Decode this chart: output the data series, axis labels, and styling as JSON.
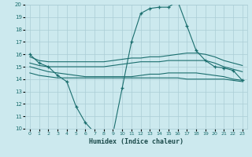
{
  "xlabel": "Humidex (Indice chaleur)",
  "bg_color": "#cce9ee",
  "grid_color": "#aacdd5",
  "line_color": "#1a6e6e",
  "xlim": [
    -0.5,
    23.5
  ],
  "ylim": [
    10,
    20
  ],
  "xticks": [
    0,
    1,
    2,
    3,
    4,
    5,
    6,
    7,
    8,
    9,
    10,
    11,
    12,
    13,
    14,
    15,
    16,
    17,
    18,
    19,
    20,
    21,
    22,
    23
  ],
  "yticks": [
    10,
    11,
    12,
    13,
    14,
    15,
    16,
    17,
    18,
    19,
    20
  ],
  "series": [
    {
      "x": [
        0,
        1,
        2,
        3,
        4,
        5,
        6,
        7,
        8,
        9,
        10,
        11,
        12,
        13,
        14,
        15,
        16,
        17,
        18,
        19,
        20,
        21,
        22,
        23
      ],
      "y": [
        16.0,
        15.3,
        15.0,
        14.3,
        13.8,
        11.8,
        10.5,
        9.7,
        9.5,
        9.6,
        13.3,
        17.0,
        19.3,
        19.7,
        19.8,
        19.8,
        20.3,
        18.3,
        16.3,
        15.5,
        15.0,
        14.9,
        14.7,
        13.9
      ],
      "marker": "+"
    },
    {
      "x": [
        0,
        1,
        2,
        3,
        4,
        5,
        6,
        7,
        8,
        9,
        10,
        11,
        12,
        13,
        14,
        15,
        16,
        17,
        18,
        19,
        20,
        21,
        22,
        23
      ],
      "y": [
        15.8,
        15.5,
        15.4,
        15.4,
        15.4,
        15.4,
        15.4,
        15.4,
        15.4,
        15.5,
        15.6,
        15.7,
        15.7,
        15.8,
        15.8,
        15.9,
        16.0,
        16.1,
        16.1,
        16.0,
        15.8,
        15.5,
        15.3,
        15.1
      ],
      "marker": null
    },
    {
      "x": [
        0,
        1,
        2,
        3,
        4,
        5,
        6,
        7,
        8,
        9,
        10,
        11,
        12,
        13,
        14,
        15,
        16,
        17,
        18,
        19,
        20,
        21,
        22,
        23
      ],
      "y": [
        15.3,
        15.1,
        15.0,
        15.0,
        15.0,
        15.0,
        15.0,
        15.0,
        15.0,
        15.1,
        15.2,
        15.3,
        15.4,
        15.4,
        15.4,
        15.5,
        15.5,
        15.5,
        15.5,
        15.5,
        15.3,
        15.0,
        14.8,
        14.6
      ],
      "marker": null
    },
    {
      "x": [
        0,
        1,
        2,
        3,
        4,
        5,
        6,
        7,
        8,
        9,
        10,
        11,
        12,
        13,
        14,
        15,
        16,
        17,
        18,
        19,
        20,
        21,
        22,
        23
      ],
      "y": [
        15.0,
        14.8,
        14.6,
        14.5,
        14.4,
        14.3,
        14.2,
        14.2,
        14.2,
        14.2,
        14.2,
        14.2,
        14.3,
        14.4,
        14.4,
        14.5,
        14.5,
        14.5,
        14.5,
        14.4,
        14.3,
        14.2,
        14.0,
        13.9
      ],
      "marker": null
    },
    {
      "x": [
        0,
        1,
        2,
        3,
        4,
        5,
        6,
        7,
        8,
        9,
        10,
        11,
        12,
        13,
        14,
        15,
        16,
        17,
        18,
        19,
        20,
        21,
        22,
        23
      ],
      "y": [
        14.5,
        14.3,
        14.2,
        14.1,
        14.1,
        14.1,
        14.1,
        14.1,
        14.1,
        14.1,
        14.1,
        14.1,
        14.1,
        14.1,
        14.1,
        14.1,
        14.1,
        14.0,
        14.0,
        14.0,
        14.0,
        14.0,
        13.9,
        13.8
      ],
      "marker": null
    }
  ]
}
